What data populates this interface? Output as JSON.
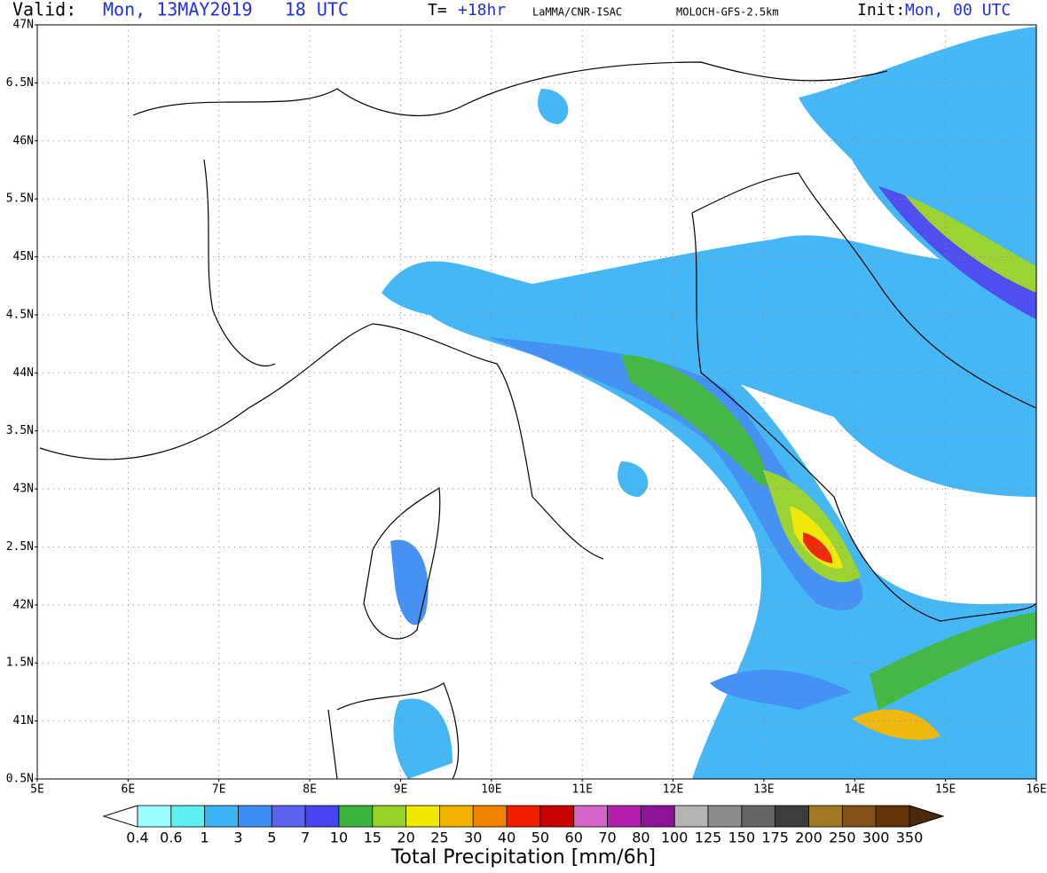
{
  "header": {
    "valid_label": "Valid:",
    "valid_value": "Mon, 13MAY2019   18 UTC",
    "t_label": "T=",
    "t_value": "+18hr",
    "source": "LaMMA/CNR-ISAC",
    "model": "MOLOCH-GFS-2.5km",
    "init_label": "Init:",
    "init_value": "Mon, 00 UTC"
  },
  "map": {
    "lat_labels": [
      "47N",
      "6.5N",
      "46N",
      "5.5N",
      "45N",
      "4.5N",
      "44N",
      "3.5N",
      "43N",
      "2.5N",
      "42N",
      "1.5N",
      "41N",
      "0.5N"
    ],
    "lon_labels": [
      "5E",
      "6E",
      "7E",
      "8E",
      "9E",
      "10E",
      "11E",
      "12E",
      "13E",
      "14E",
      "15E",
      "16E"
    ]
  },
  "colorbar": {
    "title": "Total Precipitation [mm/6h]",
    "labels": [
      "0.4",
      "0.6",
      "1",
      "3",
      "5",
      "7",
      "10",
      "15",
      "20",
      "25",
      "30",
      "40",
      "50",
      "60",
      "70",
      "80",
      "100",
      "125",
      "150",
      "175",
      "200",
      "250",
      "300",
      "350"
    ],
    "low_color": "#ffffff",
    "high_color": "#4a2a0a",
    "colors": [
      "#9ffcfc",
      "#5cf0f0",
      "#3cb4f4",
      "#3c8cf4",
      "#5a64f0",
      "#4646f0",
      "#3cb43c",
      "#96d228",
      "#f0e600",
      "#f0b400",
      "#f08200",
      "#f01e00",
      "#c80000",
      "#d264c8",
      "#b41eaa",
      "#8c1496",
      "#b4b4b4",
      "#8c8c8c",
      "#646464",
      "#3c3c3c",
      "#a07828",
      "#825014",
      "#643208"
    ]
  }
}
